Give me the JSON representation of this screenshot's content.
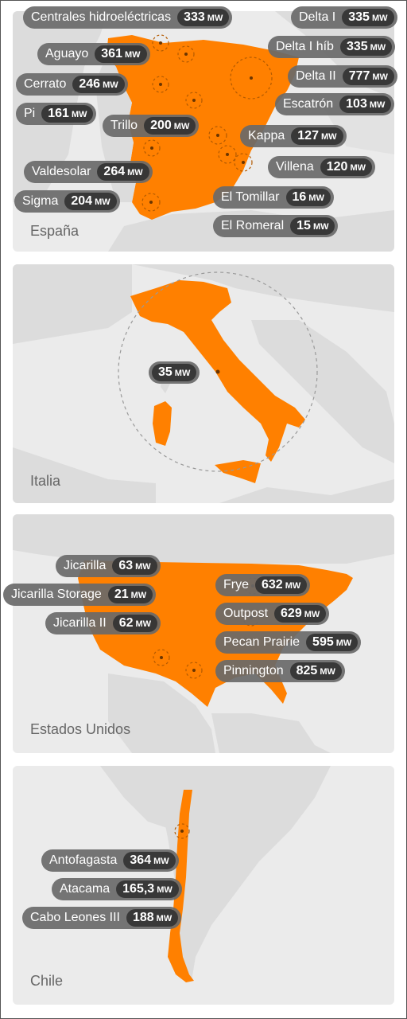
{
  "spain": {
    "country": "España",
    "plants": [
      {
        "name": "Centrales hidroeléctricas",
        "value": "333",
        "unit": "MW"
      },
      {
        "name": "Aguayo",
        "value": "361",
        "unit": "MW"
      },
      {
        "name": "Cerrato",
        "value": "246",
        "unit": "MW"
      },
      {
        "name": "Pi",
        "value": "161",
        "unit": "MW"
      },
      {
        "name": "Trillo",
        "value": "200",
        "unit": "MW"
      },
      {
        "name": "Valdesolar",
        "value": "264",
        "unit": "MW"
      },
      {
        "name": "Sigma",
        "value": "204",
        "unit": "MW"
      },
      {
        "name": "Delta I",
        "value": "335",
        "unit": "MW"
      },
      {
        "name": "Delta I híb",
        "value": "335",
        "unit": "MW"
      },
      {
        "name": "Delta II",
        "value": "777",
        "unit": "MW"
      },
      {
        "name": "Escatrón",
        "value": "103",
        "unit": "MW"
      },
      {
        "name": "Kappa",
        "value": "127",
        "unit": "MW"
      },
      {
        "name": "Villena",
        "value": "120",
        "unit": "MW"
      },
      {
        "name": "El Tomillar",
        "value": "16",
        "unit": "MW"
      },
      {
        "name": "El Romeral",
        "value": "15",
        "unit": "MW"
      }
    ]
  },
  "italy": {
    "country": "Italia",
    "plants": [
      {
        "name": "",
        "value": "35",
        "unit": "MW"
      }
    ]
  },
  "usa": {
    "country": "Estados Unidos",
    "plants": [
      {
        "name": "Jicarilla",
        "value": "63",
        "unit": "MW"
      },
      {
        "name": "Jicarilla Storage",
        "value": "21",
        "unit": "MW"
      },
      {
        "name": "Jicarilla II",
        "value": "62",
        "unit": "MW"
      },
      {
        "name": "Frye",
        "value": "632",
        "unit": "MW"
      },
      {
        "name": "Outpost",
        "value": "629",
        "unit": "MW"
      },
      {
        "name": "Pecan Prairie",
        "value": "595",
        "unit": "MW"
      },
      {
        "name": "Pinnington",
        "value": "825",
        "unit": "MW"
      }
    ]
  },
  "chile": {
    "country": "Chile",
    "plants": [
      {
        "name": "Antofagasta",
        "value": "364",
        "unit": "MW"
      },
      {
        "name": "Atacama",
        "value": "165,3",
        "unit": "MW"
      },
      {
        "name": "Cabo Leones III",
        "value": "188",
        "unit": "MW"
      }
    ]
  },
  "colors": {
    "country_fill": "#ff8000",
    "land": "#dcdcdc",
    "water": "#ebebeb",
    "pill_bg": "#696969",
    "value_bg": "#323232"
  }
}
